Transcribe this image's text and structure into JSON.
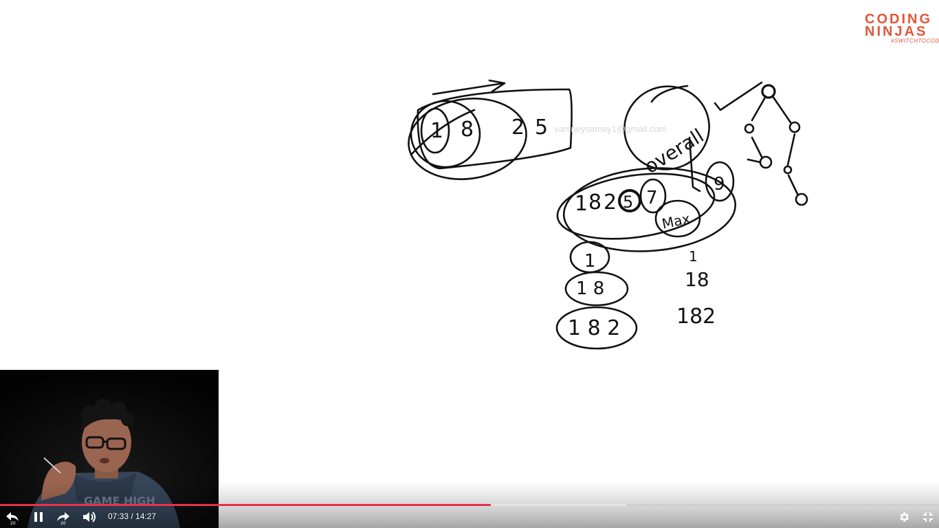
{
  "brand": {
    "logo_line1": "CODING",
    "logo_line2": "NINJAS",
    "tagline": "#SWITCHTOCODE",
    "color": "#e2553a"
  },
  "whiteboard": {
    "watermark": "varsneysamay1@gmail.com",
    "ink_color": "#111111",
    "sketches": {
      "array_digits": [
        "1",
        "8",
        "2",
        "5"
      ],
      "overall_label": "overall",
      "max_label": "Max",
      "middle_row": [
        "1",
        "8",
        "2",
        "5",
        "7",
        "9"
      ],
      "subarrays_left": [
        "1",
        "1 8",
        "1 8 2"
      ],
      "subarrays_right": [
        "1",
        "18",
        "182"
      ]
    }
  },
  "player": {
    "current_time": "07:33",
    "separator": " / ",
    "duration": "14:27",
    "played_fraction": 0.523,
    "buffered_fraction": 0.667,
    "progress_color": "#e8304a",
    "icons": {
      "rewind": "rewind-20-icon",
      "pause": "pause-icon",
      "forward": "forward-20-icon",
      "volume": "volume-icon",
      "settings": "gear-icon",
      "fullscreen": "exit-fullscreen-icon"
    },
    "skip_seconds": "20"
  }
}
